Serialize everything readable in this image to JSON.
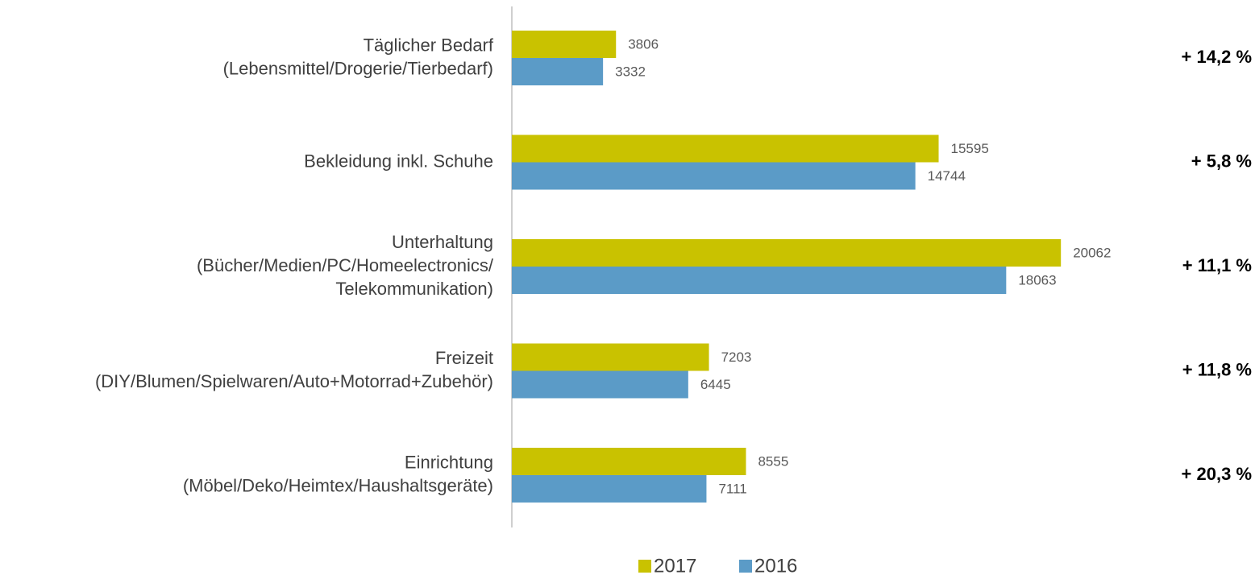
{
  "chart_data": {
    "type": "bar",
    "orientation": "horizontal",
    "categories": [
      "Täglicher Bedarf\n(Lebensmittel/Drogerie/Tierbedarf)",
      "Bekleidung inkl. Schuhe",
      "Unterhaltung\n(Bücher/Medien/PC/Homeelectronics/\nTelekommunikation)",
      "Freizeit\n(DIY/Blumen/Spielwaren/Auto+Motorrad+Zubehör)",
      "Einrichtung\n(Möbel/Deko/Heimtex/Haushaltsgeräte)"
    ],
    "series": [
      {
        "name": "2017",
        "color": "#c9c200",
        "values": [
          3806,
          15595,
          20062,
          7203,
          8555
        ]
      },
      {
        "name": "2016",
        "color": "#5b9bc7",
        "values": [
          3332,
          14744,
          18063,
          6445,
          7111
        ]
      }
    ],
    "annotations": [
      "+ 14,2 %",
      "+ 5,8 %",
      "+ 11,1 %",
      "+ 11,8 %",
      "+ 20,3 %"
    ],
    "xlim": [
      0,
      22000
    ],
    "legend": "bottom"
  }
}
